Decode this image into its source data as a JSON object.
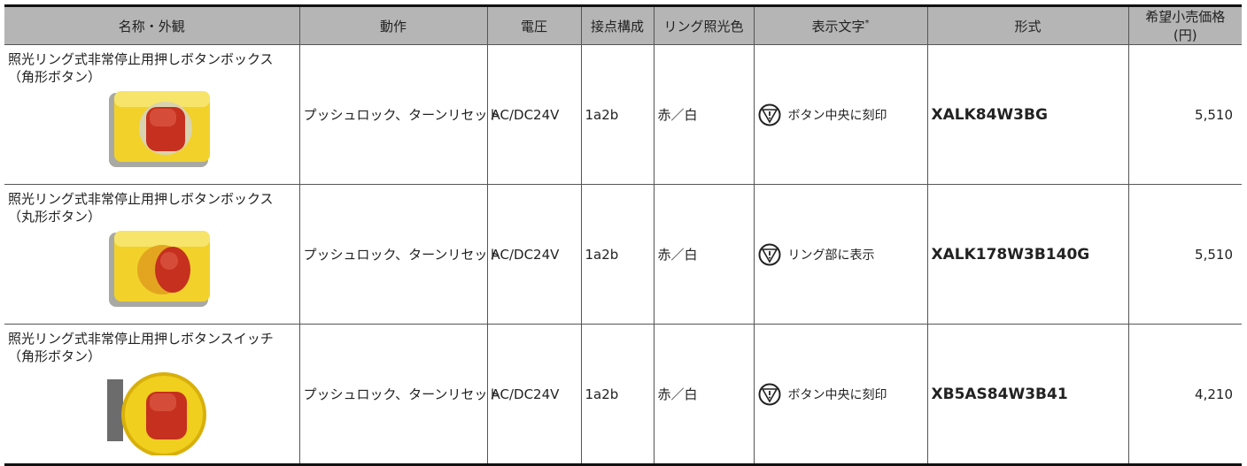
{
  "table": {
    "columns": [
      "名称・外観",
      "動作",
      "電圧",
      "接点構成",
      "リング照光色",
      "表示文字",
      "形式",
      "希望小売価格 (円)"
    ],
    "display_note_mark": "*",
    "rows": [
      [
        "照光リング式非常停止用押しボタンボックス",
        "（角形ボタン）",
        "プッシュロック、ターンリセット",
        "AC/DC24V",
        "1a2b",
        "赤／白",
        "ボタン中央に刻印",
        "XALK84W3BG",
        "5,510"
      ],
      [
        "照光リング式非常停止用押しボタンボックス",
        "（丸形ボタン）",
        "プッシュロック、ターンリセット",
        "AC/DC24V",
        "1a2b",
        "赤／白",
        "リング部に表示",
        "XALK178W3B140G",
        "5,510"
      ],
      [
        "照光リング式非常停止用押しボタンスイッチ",
        "（角形ボタン）",
        "プッシュロック、ターンリセット",
        "AC/DC24V",
        "1a2b",
        "赤／白",
        "ボタン中央に刻印",
        "XB5AS84W3B41",
        "4,210"
      ]
    ]
  }
}
